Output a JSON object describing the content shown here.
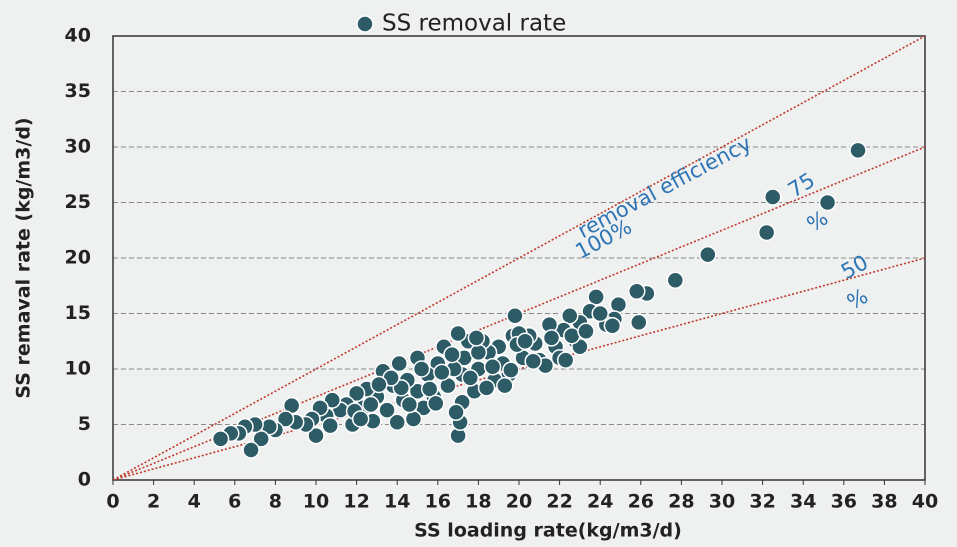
{
  "chart_data": {
    "type": "scatter",
    "xlabel": "SS loading rate(kg/m3/d)",
    "ylabel": "SS remaval rate (kg/m3/d)",
    "xlim": [
      0,
      40
    ],
    "ylim": [
      0,
      40
    ],
    "xticks": [
      0,
      2,
      4,
      6,
      8,
      10,
      12,
      14,
      16,
      18,
      20,
      22,
      24,
      26,
      28,
      30,
      32,
      34,
      36,
      38,
      40
    ],
    "yticks": [
      0,
      5,
      10,
      15,
      20,
      25,
      30,
      35,
      40
    ],
    "grid": true,
    "legend": "top",
    "x": [
      36.7,
      35.2,
      32.5,
      32.2,
      29.3,
      27.7,
      26.3,
      25.8,
      25.9,
      24.9,
      24.7,
      24.3,
      23.8,
      23.5,
      24.0,
      23.0,
      22.8,
      22.5,
      22.2,
      21.8,
      21.5,
      21.0,
      20.8,
      20.5,
      20.2,
      19.8,
      19.7,
      19.5,
      19.2,
      19.0,
      18.8,
      18.5,
      18.2,
      18.0,
      17.8,
      17.5,
      17.3,
      17.2,
      17.0,
      17.0,
      17.1,
      17.2,
      16.8,
      16.5,
      16.3,
      16.0,
      15.8,
      15.5,
      15.3,
      15.0,
      15.0,
      14.8,
      14.5,
      14.3,
      14.1,
      14.0,
      13.8,
      13.5,
      13.3,
      13.0,
      12.8,
      12.5,
      12.3,
      12.0,
      11.8,
      11.5,
      11.2,
      10.8,
      10.5,
      10.2,
      10.0,
      9.8,
      9.5,
      9.0,
      8.8,
      8.5,
      8.0,
      7.7,
      7.3,
      7.0,
      6.8,
      6.5,
      6.2,
      5.8,
      5.3,
      20.0,
      21.3,
      22.0,
      23.0,
      22.6,
      19.3,
      18.0,
      16.7,
      15.2,
      14.2,
      13.7,
      12.7,
      20.7,
      19.9,
      18.7,
      21.6,
      17.6,
      16.2,
      15.6,
      14.6,
      13.1,
      11.9,
      17.9,
      18.4,
      19.6,
      20.3,
      22.3,
      23.3,
      24.6,
      16.9,
      15.9,
      12.2,
      10.7
    ],
    "series": [
      {
        "name": "SS removal rate",
        "color": "#2d5b66",
        "values": [
          29.7,
          25.0,
          25.5,
          22.3,
          20.3,
          18.0,
          16.8,
          17.0,
          14.2,
          15.8,
          14.5,
          14.0,
          16.5,
          15.2,
          15.0,
          14.2,
          12.5,
          14.8,
          13.5,
          12.0,
          14.0,
          10.8,
          12.3,
          13.0,
          11.0,
          14.8,
          13.0,
          9.5,
          10.5,
          12.0,
          9.0,
          11.5,
          12.5,
          10.0,
          8.0,
          12.5,
          11.0,
          9.5,
          13.2,
          4.0,
          5.2,
          7.0,
          10.0,
          8.5,
          12.0,
          10.5,
          7.5,
          9.5,
          6.5,
          11.0,
          8.0,
          5.5,
          9.0,
          7.2,
          10.5,
          5.2,
          8.5,
          6.3,
          9.8,
          7.5,
          5.3,
          8.2,
          6.5,
          7.8,
          5.0,
          6.8,
          6.3,
          7.2,
          5.8,
          6.5,
          4.0,
          5.5,
          5.0,
          5.2,
          6.7,
          5.5,
          4.5,
          4.8,
          3.7,
          5.0,
          2.7,
          4.8,
          4.2,
          4.2,
          3.7,
          13.2,
          10.3,
          11.0,
          12.0,
          13.0,
          8.5,
          11.5,
          11.3,
          10.0,
          8.3,
          9.2,
          6.8,
          10.7,
          12.2,
          10.2,
          12.8,
          9.2,
          9.7,
          8.2,
          6.8,
          8.6,
          6.2,
          12.8,
          8.3,
          9.9,
          12.5,
          10.8,
          13.4,
          13.9,
          6.1,
          6.9,
          5.5,
          4.9
        ]
      }
    ],
    "reference_lines": [
      {
        "slope": 1,
        "color": "#c0392b",
        "label": [
          "removal efficiency",
          "100%"
        ]
      },
      {
        "slope": 0.75,
        "color": "#c0392b",
        "label": [
          "75",
          "%"
        ]
      },
      {
        "slope": 0.5,
        "color": "#c0392b",
        "label": [
          "50",
          "%"
        ]
      }
    ]
  }
}
